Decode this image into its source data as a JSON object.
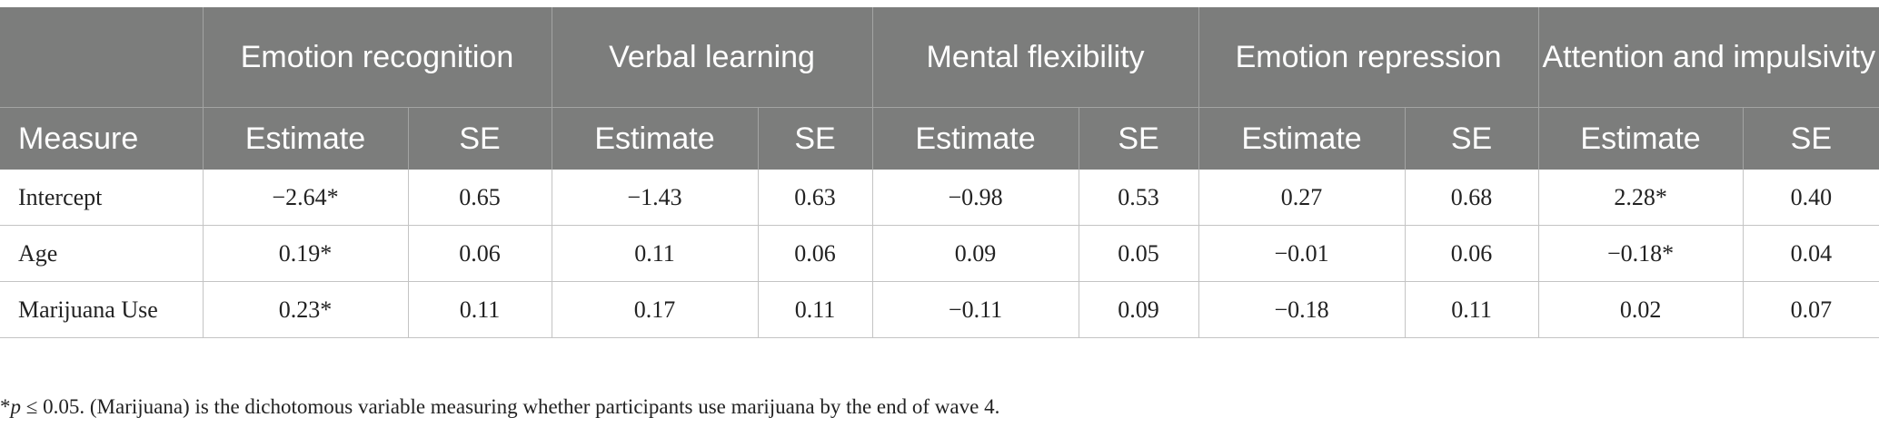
{
  "table": {
    "measure_header": "Measure",
    "groups": [
      {
        "label": "Emotion recognition",
        "estimate_header": "Estimate",
        "se_header": "SE"
      },
      {
        "label": "Verbal learning",
        "estimate_header": "Estimate",
        "se_header": "SE"
      },
      {
        "label": "Mental flexibility",
        "estimate_header": "Estimate",
        "se_header": "SE"
      },
      {
        "label": "Emotion repression",
        "estimate_header": "Estimate",
        "se_header": "SE"
      },
      {
        "label": "Attention and impulsivity",
        "estimate_header": "Estimate",
        "se_header": "SE"
      }
    ],
    "rows": [
      {
        "measure": "Intercept",
        "cells": [
          "−2.64*",
          "0.65",
          "−1.43",
          "0.63",
          "−0.98",
          "0.53",
          "0.27",
          "0.68",
          "2.28*",
          "0.40"
        ]
      },
      {
        "measure": "Age",
        "cells": [
          "0.19*",
          "0.06",
          "0.11",
          "0.06",
          "0.09",
          "0.05",
          "−0.01",
          "0.06",
          "−0.18*",
          "0.04"
        ]
      },
      {
        "measure": "Marijuana Use",
        "cells": [
          "0.23*",
          "0.11",
          "0.17",
          "0.11",
          "−0.11",
          "0.09",
          "−0.18",
          "0.11",
          "0.02",
          "0.07"
        ]
      }
    ]
  },
  "footnote": {
    "star": "*",
    "p_symbol": "p",
    "text": " ≤ 0.05. (Marijuana) is the dichotomous variable measuring whether participants use marijuana by the end of wave 4."
  }
}
